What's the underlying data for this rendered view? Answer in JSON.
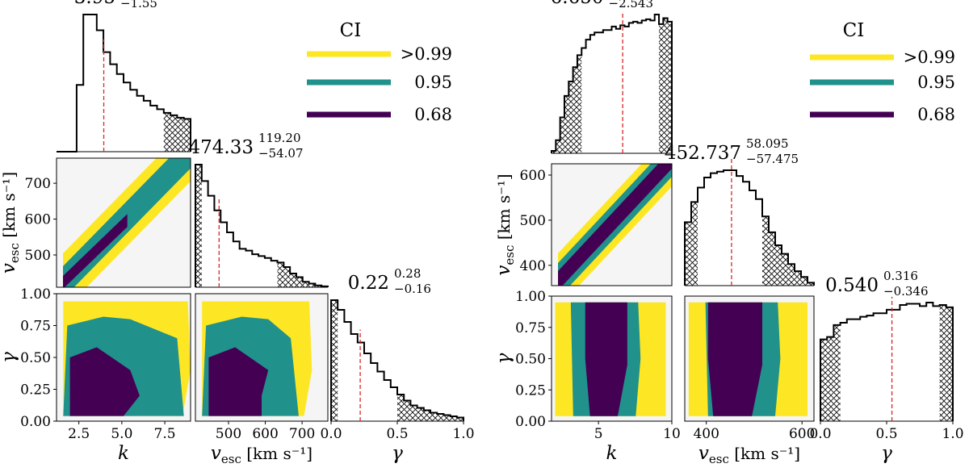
{
  "colors": {
    "ci_99": "#fde725",
    "ci_95": "#21918c",
    "ci_68": "#440154",
    "bg_region": "#f5f5f5",
    "median_line": "#d62728",
    "hist_line": "#000000"
  },
  "chart_data": [
    {
      "type": "corner",
      "legend": {
        "title": "CI",
        "entries": [
          {
            "label": ">0.99",
            "color": "#fde725"
          },
          {
            "label": "0.95",
            "color": "#21918c"
          },
          {
            "label": "0.68",
            "color": "#440154"
          }
        ]
      },
      "parameters": [
        {
          "symbol": "k",
          "xlabel": "k",
          "range": [
            1.2,
            9.0
          ],
          "ticks": [
            2.5,
            5.0,
            7.5
          ],
          "tick_labels": [
            "2.5",
            "5.0",
            "7.5"
          ],
          "median": 3.95,
          "median_text": "3.95",
          "err_plus": "3.16",
          "err_minus": "−1.55",
          "ci_low": 1.9,
          "ci_high": 7.4,
          "hist": [
            0,
            0,
            0,
            55,
            113,
            113,
            100,
            82,
            72,
            64,
            57,
            51,
            46,
            42,
            38,
            35,
            32,
            30,
            28,
            27
          ]
        },
        {
          "symbol": "v_esc",
          "xlabel": "v",
          "xlabel_sub": "esc",
          "xlabel_unit": " [km s⁻¹]",
          "ylabel": "v",
          "ylabel_sub": "esc",
          "ylabel_unit": " [km s⁻¹]",
          "range": [
            410,
            770
          ],
          "ticks": [
            500,
            600,
            700
          ],
          "tick_labels": [
            "500",
            "600",
            "700"
          ],
          "yticks": [
            500,
            600,
            700
          ],
          "ytick_labels": [
            "500",
            "600",
            "700"
          ],
          "median": 474.33,
          "median_text": "474.33",
          "err_plus": "119.20",
          "err_minus": "−54.07",
          "ci_low": 428,
          "ci_high": 620,
          "hist": [
            134,
            116,
            100,
            84,
            71,
            60,
            50,
            42,
            40,
            36,
            34,
            32,
            29,
            27,
            22,
            15,
            11,
            6,
            4,
            2,
            1
          ]
        },
        {
          "symbol": "gamma",
          "xlabel": "γ",
          "ylabel": "γ",
          "range": [
            0.0,
            1.0
          ],
          "ticks": [
            0.0,
            0.5,
            1.0
          ],
          "tick_labels": [
            "0.0",
            "0.5",
            "1.0"
          ],
          "yticks": [
            0.0,
            0.25,
            0.5,
            0.75,
            1.0
          ],
          "ytick_labels": [
            "0.00",
            "0.25",
            "0.50",
            "0.75",
            "1.00"
          ],
          "median": 0.22,
          "median_text": "0.22",
          "err_plus": "0.28",
          "err_minus": "−0.16",
          "ci_low": 0.06,
          "ci_high": 0.5,
          "hist": [
            100,
            92,
            82,
            72,
            65,
            56,
            48,
            41,
            34,
            28,
            22,
            17,
            13,
            11,
            9,
            7,
            6,
            5,
            4,
            3
          ]
        }
      ]
    },
    {
      "type": "corner",
      "legend": {
        "title": "CI",
        "entries": [
          {
            "label": ">0.99",
            "color": "#fde725"
          },
          {
            "label": "0.95",
            "color": "#21918c"
          },
          {
            "label": "0.68",
            "color": "#440154"
          }
        ]
      },
      "parameters": [
        {
          "symbol": "k",
          "xlabel": "k",
          "range": [
            1.8,
            10.0
          ],
          "ticks": [
            5,
            10
          ],
          "tick_labels": [
            "5",
            "10"
          ],
          "median": 6.65,
          "median_text": "6.650",
          "err_plus": "2.348",
          "err_minus": "−2.543",
          "ci_low": 4.1,
          "ci_high": 9.0,
          "hist": [
            2,
            11,
            30,
            48,
            60,
            72,
            82,
            88,
            95,
            99,
            101,
            101,
            103,
            103,
            106,
            104,
            107,
            106,
            109,
            110,
            109,
            111,
            112,
            111,
            116,
            108,
            113,
            110
          ]
        },
        {
          "symbol": "v_esc",
          "xlabel": "v",
          "xlabel_sub": "esc",
          "xlabel_unit": " [km s⁻¹]",
          "ylabel": "v",
          "ylabel_sub": "esc",
          "ylabel_unit": " [km s⁻¹]",
          "range": [
            355,
            625
          ],
          "ticks": [
            400,
            600
          ],
          "tick_labels": [
            "400",
            "600"
          ],
          "yticks": [
            400,
            500,
            600
          ],
          "ytick_labels": [
            "400",
            "500",
            "600"
          ],
          "median": 452.737,
          "median_text": "452.737",
          "err_plus": "58.095",
          "err_minus": "−57.475",
          "ci_low": 395,
          "ci_high": 511,
          "hist": [
            44,
            58,
            68,
            75,
            78,
            79,
            80,
            80,
            76,
            72,
            66,
            60,
            48,
            37,
            28,
            22,
            15,
            10,
            6,
            2
          ]
        },
        {
          "symbol": "gamma",
          "xlabel": "γ",
          "ylabel": "γ",
          "range": [
            0.0,
            1.0
          ],
          "ticks": [
            0.0,
            0.5,
            1.0
          ],
          "tick_labels": [
            "0.0",
            "0.5",
            "1.0"
          ],
          "yticks": [
            0.0,
            0.25,
            0.5,
            0.75,
            1.0
          ],
          "ytick_labels": [
            "0.00",
            "0.25",
            "0.50",
            "0.75",
            "1.00"
          ],
          "median": 0.54,
          "median_text": "0.540",
          "err_plus": "0.316",
          "err_minus": "−0.346",
          "ci_low": 0.18,
          "ci_high": 0.9,
          "hist": [
            69,
            71,
            81,
            83,
            86,
            86,
            88,
            89,
            91,
            91,
            94,
            94,
            98,
            99,
            99,
            97,
            100,
            97,
            98,
            96
          ]
        }
      ]
    }
  ]
}
